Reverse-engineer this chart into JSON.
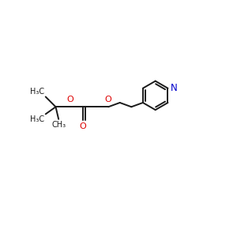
{
  "bg_color": "#ffffff",
  "bond_color": "#1a1a1a",
  "oxygen_color": "#dd0000",
  "nitrogen_color": "#0000cc",
  "line_width": 1.4,
  "font_size": 7.0,
  "figsize": [
    3.0,
    3.0
  ],
  "dpi": 100,
  "xlim": [
    0,
    10
  ],
  "ylim": [
    0,
    10
  ]
}
